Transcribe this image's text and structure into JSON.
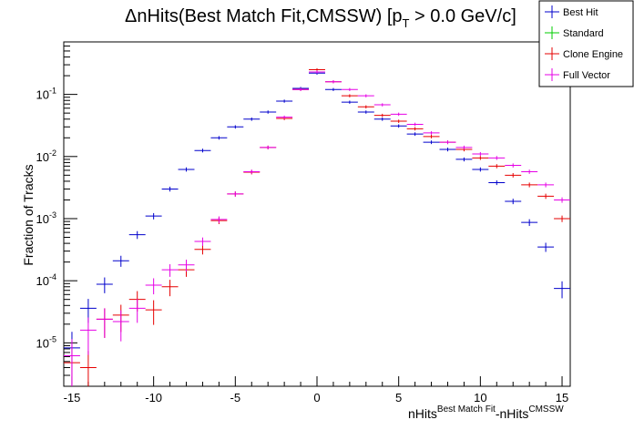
{
  "chart_data": {
    "type": "scatter",
    "title": {
      "main": "ΔnHits(Best Match Fit,CMSSW) [p",
      "sub": "T",
      "tail": " > 0.0 GeV/c]"
    },
    "xlabel": {
      "a": "nHits",
      "a_sup": "Best Match Fit",
      "b": "-nHits",
      "b_sup": "CMSSW"
    },
    "ylabel": "Fraction of Tracks",
    "xlim": [
      -15.5,
      15.5
    ],
    "ylim": [
      2e-06,
      0.7
    ],
    "yscale": "log",
    "x_ticks": [
      {
        "value": -15,
        "label": "-15"
      },
      {
        "value": -10,
        "label": "-10"
      },
      {
        "value": -5,
        "label": "-5"
      },
      {
        "value": 0,
        "label": "0"
      },
      {
        "value": 5,
        "label": "5"
      },
      {
        "value": 10,
        "label": "10"
      },
      {
        "value": 15,
        "label": "15"
      }
    ],
    "y_ticks": [
      {
        "value": 1e-05,
        "base": "10",
        "exp": "-5"
      },
      {
        "value": 0.0001,
        "base": "10",
        "exp": "-4"
      },
      {
        "value": 0.001,
        "base": "10",
        "exp": "-3"
      },
      {
        "value": 0.01,
        "base": "10",
        "exp": "-2"
      },
      {
        "value": 0.1,
        "base": "10",
        "exp": "-1"
      }
    ],
    "legend_position": "top-right",
    "series": [
      {
        "name": "Best Hit",
        "color": "#0000cc",
        "points": [
          [
            -15,
            8.3e-06
          ],
          [
            -14,
            3.6e-05
          ],
          [
            -13,
            8.8e-05
          ],
          [
            -12,
            0.00021
          ],
          [
            -11,
            0.00055
          ],
          [
            -10,
            0.0011
          ],
          [
            -9,
            0.003
          ],
          [
            -8,
            0.0062
          ],
          [
            -7,
            0.0125
          ],
          [
            -6,
            0.02
          ],
          [
            -5,
            0.03
          ],
          [
            -4,
            0.04
          ],
          [
            -3,
            0.052
          ],
          [
            -2,
            0.078
          ],
          [
            -1,
            0.125
          ],
          [
            0,
            0.22
          ],
          [
            1,
            0.12
          ],
          [
            2,
            0.075
          ],
          [
            3,
            0.052
          ],
          [
            4,
            0.04
          ],
          [
            5,
            0.031
          ],
          [
            6,
            0.023
          ],
          [
            7,
            0.017
          ],
          [
            8,
            0.013
          ],
          [
            9,
            0.009
          ],
          [
            10,
            0.0062
          ],
          [
            11,
            0.0038
          ],
          [
            12,
            0.0019
          ],
          [
            13,
            0.00087
          ],
          [
            14,
            0.00035
          ],
          [
            15,
            7.5e-05
          ]
        ]
      },
      {
        "name": "Standard",
        "color": "#00cc00",
        "points": []
      },
      {
        "name": "Clone Engine",
        "color": "#e60000",
        "points": [
          [
            -15,
            4.8e-06
          ],
          [
            -14,
            4e-06
          ],
          [
            -13,
            2.4e-05
          ],
          [
            -12,
            2.8e-05
          ],
          [
            -11,
            5e-05
          ],
          [
            -10,
            3.4e-05
          ],
          [
            -9,
            8e-05
          ],
          [
            -8,
            0.00015
          ],
          [
            -7,
            0.00032
          ],
          [
            -6,
            0.00093
          ],
          [
            -5,
            0.0025
          ],
          [
            -4,
            0.0056
          ],
          [
            -3,
            0.014
          ],
          [
            -2,
            0.041
          ],
          [
            -1,
            0.12
          ],
          [
            0,
            0.25
          ],
          [
            1,
            0.16
          ],
          [
            2,
            0.095
          ],
          [
            3,
            0.063
          ],
          [
            4,
            0.046
          ],
          [
            5,
            0.037
          ],
          [
            6,
            0.028
          ],
          [
            7,
            0.021
          ],
          [
            8,
            0.017
          ],
          [
            9,
            0.013
          ],
          [
            10,
            0.0095
          ],
          [
            11,
            0.007
          ],
          [
            12,
            0.005
          ],
          [
            13,
            0.0035
          ],
          [
            14,
            0.0023
          ],
          [
            15,
            0.001
          ]
        ]
      },
      {
        "name": "Full Vector",
        "color": "#e600e6",
        "points": [
          [
            -15,
            6.2e-06
          ],
          [
            -14,
            1.6e-05
          ],
          [
            -13,
            2.4e-05
          ],
          [
            -12,
            2.2e-05
          ],
          [
            -11,
            3.6e-05
          ],
          [
            -10,
            8.5e-05
          ],
          [
            -9,
            0.00015
          ],
          [
            -8,
            0.00018
          ],
          [
            -7,
            0.00043
          ],
          [
            -6,
            0.00097
          ],
          [
            -5,
            0.0025
          ],
          [
            -4,
            0.0057
          ],
          [
            -3,
            0.014
          ],
          [
            -2,
            0.043
          ],
          [
            -1,
            0.12
          ],
          [
            0,
            0.23
          ],
          [
            1,
            0.16
          ],
          [
            2,
            0.12
          ],
          [
            3,
            0.095
          ],
          [
            4,
            0.068
          ],
          [
            5,
            0.048
          ],
          [
            6,
            0.033
          ],
          [
            7,
            0.024
          ],
          [
            8,
            0.017
          ],
          [
            9,
            0.014
          ],
          [
            10,
            0.011
          ],
          [
            11,
            0.0095
          ],
          [
            12,
            0.0072
          ],
          [
            13,
            0.0057
          ],
          [
            14,
            0.0035
          ],
          [
            15,
            0.002
          ]
        ]
      }
    ]
  }
}
